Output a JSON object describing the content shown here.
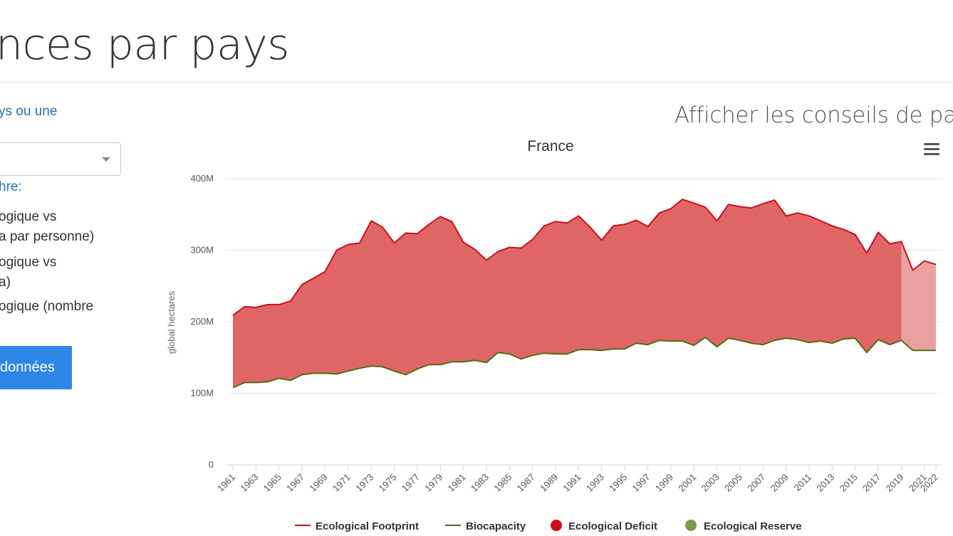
{
  "page": {
    "title": "nces par pays",
    "sidebar_prompt": "ys ou une",
    "sidebar_heading": "hre:",
    "options": [
      {
        "line1": "ogique vs",
        "line2": "a par personne)"
      },
      {
        "line1": "ogique vs",
        "line2": "a)"
      },
      {
        "line1": "ogique (nombre",
        "line2": ""
      }
    ],
    "data_button": "données",
    "tips_link": "Afficher les conseils de page"
  },
  "colors": {
    "footprint": "#c8101d",
    "biocapacity": "#4f6d12",
    "deficit": "#e06666",
    "deficit_projected": "#eaa0a0",
    "reserve": "#7a9a52"
  },
  "chart_data": {
    "type": "area",
    "title": "France",
    "xlabel": "",
    "ylabel": "global hectares",
    "ylim": [
      0,
      400000000
    ],
    "yticks": [
      "0",
      "100M",
      "200M",
      "300M",
      "400M"
    ],
    "grid": true,
    "legend_position": "bottom",
    "xticks": [
      "1961",
      "1963",
      "1965",
      "1967",
      "1969",
      "1971",
      "1973",
      "1975",
      "1977",
      "1979",
      "1981",
      "1983",
      "1985",
      "1987",
      "1989",
      "1991",
      "1993",
      "1995",
      "1997",
      "1999",
      "2001",
      "2003",
      "2005",
      "2007",
      "2009",
      "2011",
      "2013",
      "2015",
      "2017",
      "2019",
      "2021",
      "2022"
    ],
    "x": [
      1961,
      1962,
      1963,
      1964,
      1965,
      1966,
      1967,
      1968,
      1969,
      1970,
      1971,
      1972,
      1973,
      1974,
      1975,
      1976,
      1977,
      1978,
      1979,
      1980,
      1981,
      1982,
      1983,
      1984,
      1985,
      1986,
      1987,
      1988,
      1989,
      1990,
      1991,
      1992,
      1993,
      1994,
      1995,
      1996,
      1997,
      1998,
      1999,
      2000,
      2001,
      2002,
      2003,
      2004,
      2005,
      2006,
      2007,
      2008,
      2009,
      2010,
      2011,
      2012,
      2013,
      2014,
      2015,
      2016,
      2017,
      2018,
      2019,
      2020,
      2021,
      2022
    ],
    "projected_from": 2019,
    "series": [
      {
        "name": "Ecological Footprint",
        "values": [
          209,
          221,
          220,
          224,
          224,
          229,
          252,
          261,
          270,
          300,
          308,
          310,
          341,
          332,
          310,
          324,
          323,
          336,
          347,
          340,
          311,
          301,
          286,
          298,
          304,
          303,
          315,
          334,
          340,
          338,
          348,
          332,
          314,
          334,
          336,
          342,
          333,
          352,
          358,
          371,
          366,
          360,
          341,
          364,
          361,
          359,
          365,
          370,
          348,
          352,
          348,
          341,
          334,
          329,
          322,
          296,
          325,
          309,
          312,
          272,
          285,
          280
        ]
      },
      {
        "name": "Biocapacity",
        "values": [
          108,
          115,
          115,
          116,
          121,
          118,
          126,
          128,
          128,
          127,
          131,
          135,
          138,
          137,
          131,
          126,
          134,
          140,
          140,
          144,
          144,
          146,
          143,
          157,
          155,
          148,
          153,
          156,
          155,
          155,
          161,
          161,
          160,
          162,
          162,
          170,
          168,
          174,
          173,
          173,
          167,
          178,
          165,
          177,
          174,
          170,
          168,
          174,
          177,
          175,
          171,
          173,
          170,
          176,
          177,
          157,
          175,
          168,
          174,
          160,
          160,
          160
        ]
      },
      {
        "name": "Ecological Deficit"
      },
      {
        "name": "Ecological Reserve"
      }
    ]
  }
}
